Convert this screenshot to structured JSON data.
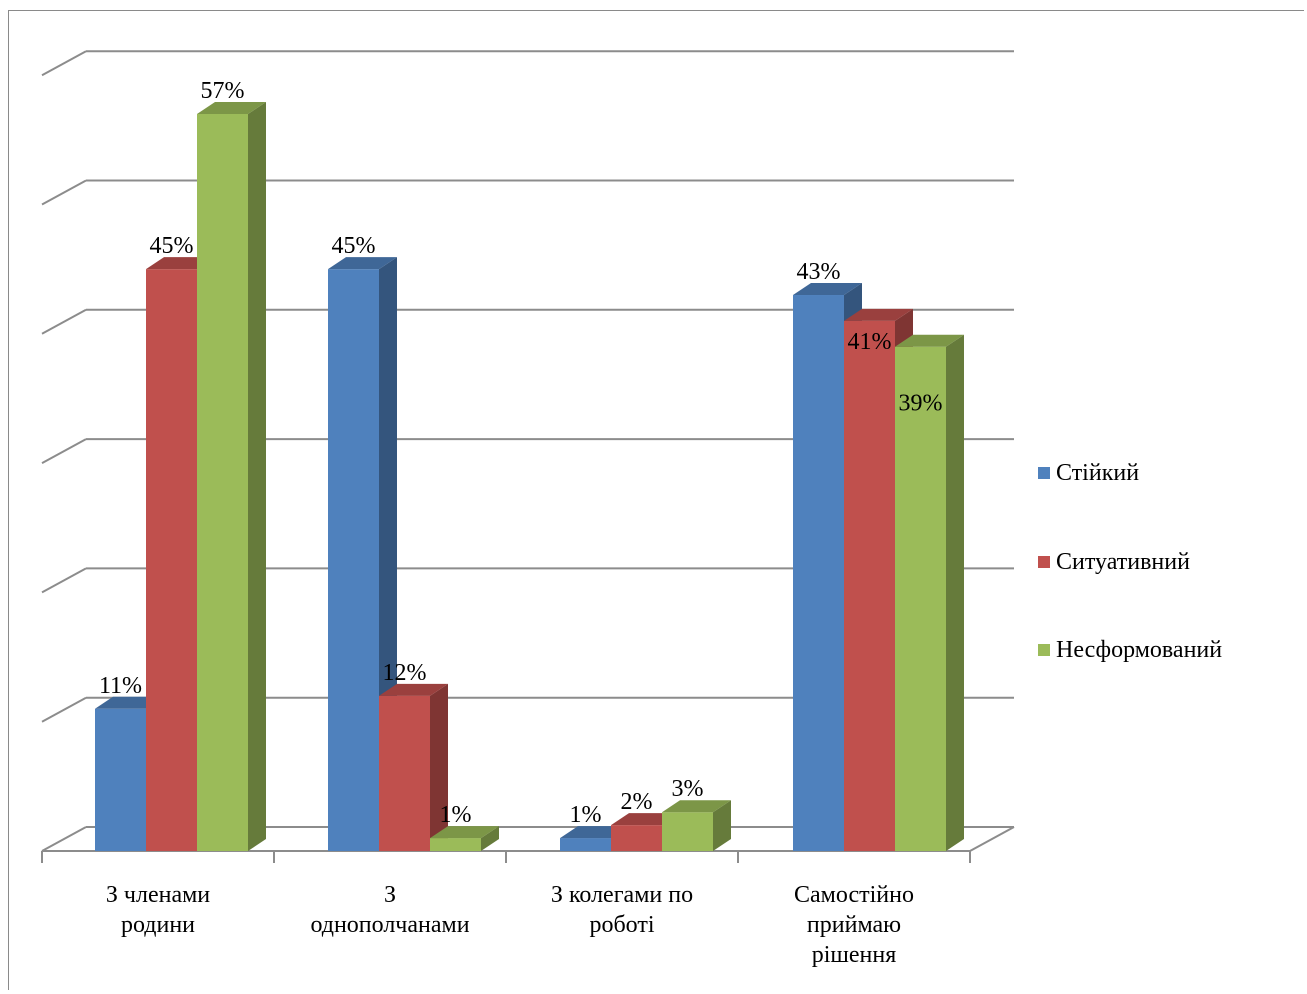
{
  "chart_data": {
    "type": "bar",
    "categories": [
      "З членами родини",
      "З однополчанами",
      "З колегами по роботі",
      "Самостійно приймаю рішення"
    ],
    "category_lines": [
      [
        "З членами",
        "родини"
      ],
      [
        "З",
        "однополчанами"
      ],
      [
        "З колегами по",
        "роботі"
      ],
      [
        "Самостійно",
        "приймаю",
        "рішення"
      ]
    ],
    "series": [
      {
        "name": "Стійкий",
        "values": [
          11,
          45,
          1,
          43
        ],
        "labels": [
          "11%",
          "45%",
          "1%",
          "43%"
        ],
        "color": "#4f81bd"
      },
      {
        "name": "Ситуативний",
        "values": [
          45,
          12,
          2,
          41
        ],
        "labels": [
          "45%",
          "12%",
          "2%",
          "41%"
        ],
        "color": "#c0504d"
      },
      {
        "name": "Несформований",
        "values": [
          57,
          1,
          3,
          39
        ],
        "labels": [
          "57%",
          "1%",
          "3%",
          "39%"
        ],
        "color": "#9bbb59"
      }
    ],
    "ylim": [
      0,
      60
    ],
    "grid": true,
    "legend_position": "right",
    "three_d": true
  }
}
